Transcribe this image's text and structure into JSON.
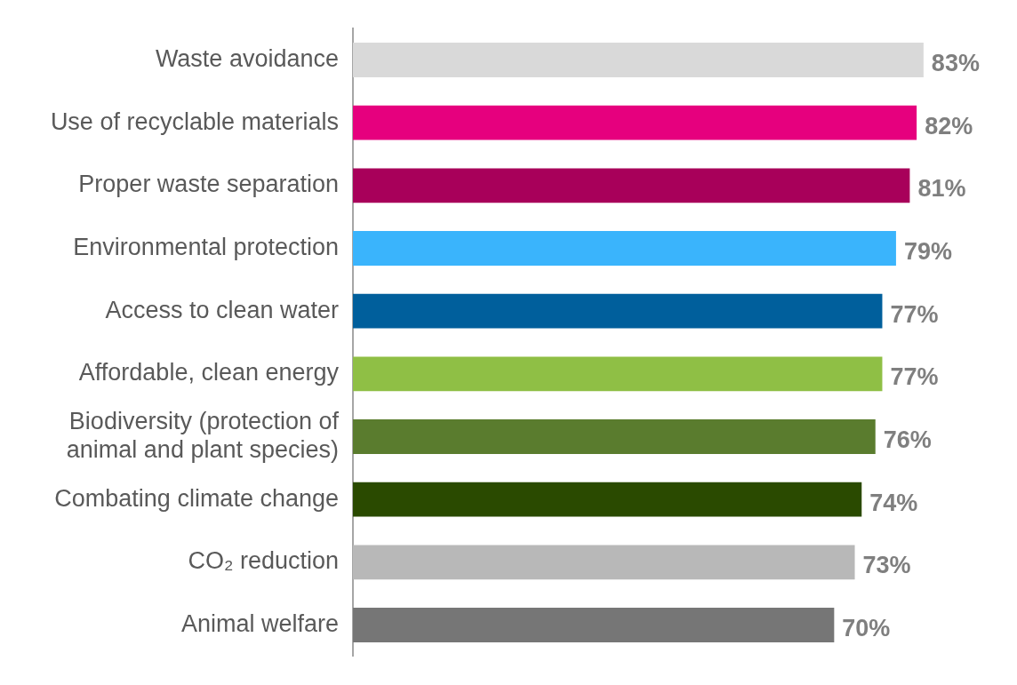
{
  "chart_data": {
    "type": "bar",
    "orientation": "horizontal",
    "categories": [
      "Waste avoidance",
      "Use of recyclable materials",
      "Proper waste separation",
      "Environmental protection",
      "Access to clean water",
      "Affordable, clean energy",
      "Biodiversity (protection of animal and plant species)",
      "Combating climate change",
      "CO₂ reduction",
      "Animal welfare"
    ],
    "values": [
      83,
      82,
      81,
      79,
      77,
      77,
      76,
      74,
      73,
      70
    ],
    "value_labels": [
      "83%",
      "82%",
      "81%",
      "79%",
      "77%",
      "77%",
      "76%",
      "74%",
      "73%",
      "70%"
    ],
    "colors": [
      "#d9d9d9",
      "#e6007e",
      "#a8005a",
      "#3ab4fc",
      "#005f9c",
      "#8fbf45",
      "#5a7c2e",
      "#2a4a00",
      "#b8b8b8",
      "#767676"
    ],
    "tick_labels": "y",
    "grid": false,
    "legend": false
  }
}
